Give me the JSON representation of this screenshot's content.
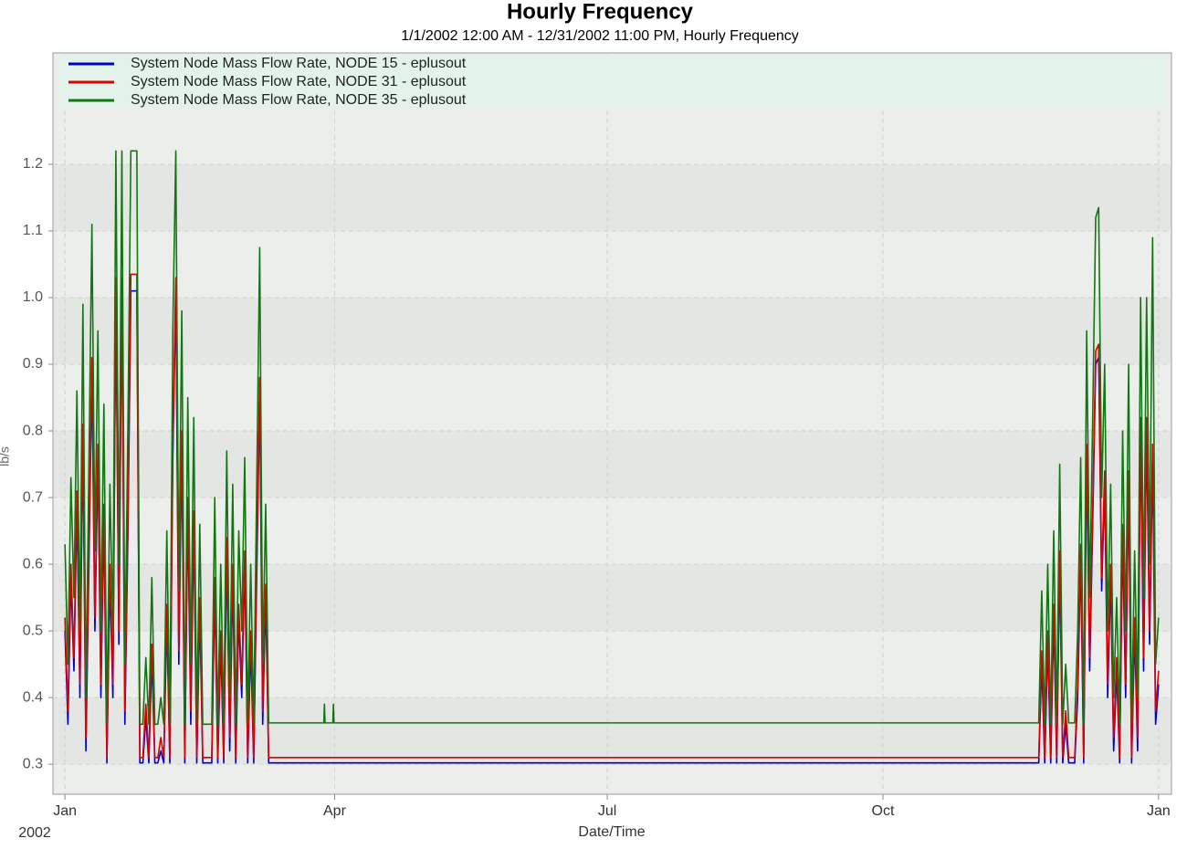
{
  "chart_data": {
    "type": "line",
    "title": "Hourly Frequency",
    "subtitle": "1/1/2002 12:00 AM - 12/31/2002 11:00 PM, Hourly Frequency",
    "x_label": "Date/Time",
    "x_sublabel": "2002",
    "y_label": "lb/s",
    "legend": "top",
    "grid": true,
    "xlim": [
      -4,
      369.3
    ],
    "xticks": [
      {
        "value": 0,
        "label": "Jan"
      },
      {
        "value": 90,
        "label": "Apr"
      },
      {
        "value": 181,
        "label": "Jul"
      },
      {
        "value": 273,
        "label": "Oct"
      },
      {
        "value": 365,
        "label": "Jan"
      }
    ],
    "ylim": [
      0.255,
      1.367
    ],
    "yticks": [
      0.3,
      0.4,
      0.5,
      0.6,
      0.7,
      0.8,
      0.9,
      {
        "value": 1,
        "label": "1.0"
      },
      1.1,
      1.2
    ],
    "x": [
      0,
      1,
      2,
      3,
      4,
      5,
      6,
      7,
      8,
      9,
      10,
      11,
      12,
      13,
      14,
      15,
      16,
      17,
      18,
      19,
      20,
      21,
      22,
      23,
      24,
      25,
      26,
      27,
      28,
      29,
      30,
      31,
      32,
      33,
      34,
      35,
      36,
      37,
      38,
      39,
      40,
      41,
      42,
      43,
      44,
      45,
      46,
      47,
      48,
      49,
      50,
      51,
      52,
      53,
      54,
      55,
      56,
      57,
      58,
      59,
      60,
      61,
      62,
      63,
      64,
      65,
      66,
      67,
      68,
      86.4,
      86.6,
      86.8,
      89.4,
      89.6,
      89.8,
      200,
      325,
      326,
      327,
      328,
      329,
      330,
      331,
      332,
      333,
      334,
      335,
      336,
      337,
      338,
      339,
      340,
      341,
      342,
      343,
      344,
      345,
      346,
      347,
      348,
      349,
      350,
      351,
      352,
      353,
      354,
      355,
      356,
      357,
      358,
      359,
      360,
      361,
      362,
      363,
      364,
      365
    ],
    "series": [
      {
        "name": "System Node Mass Flow Rate, NODE 15 - eplusout",
        "color": "#0000cc",
        "values": [
          0.5,
          0.36,
          0.58,
          0.44,
          0.69,
          0.4,
          0.79,
          0.32,
          0.6,
          0.89,
          0.5,
          0.76,
          0.4,
          0.67,
          0.302,
          0.58,
          0.4,
          1.01,
          0.48,
          1.01,
          0.36,
          0.64,
          1.01,
          1.01,
          1.01,
          0.302,
          0.302,
          0.37,
          0.302,
          0.46,
          0.302,
          0.302,
          0.32,
          0.302,
          0.52,
          0.302,
          0.76,
          1.01,
          0.45,
          0.78,
          0.302,
          0.68,
          0.36,
          0.66,
          0.302,
          0.53,
          0.302,
          0.302,
          0.302,
          0.302,
          0.56,
          0.302,
          0.48,
          0.302,
          0.62,
          0.32,
          0.58,
          0.302,
          0.52,
          0.4,
          0.6,
          0.302,
          0.48,
          0.302,
          0.58,
          0.86,
          0.36,
          0.55,
          0.302,
          0.302,
          0.302,
          0.302,
          0.302,
          0.302,
          0.302,
          0.302,
          0.302,
          0.45,
          0.302,
          0.48,
          0.302,
          0.52,
          0.302,
          0.6,
          0.302,
          0.36,
          0.302,
          0.302,
          0.302,
          0.4,
          0.61,
          0.302,
          0.76,
          0.44,
          0.66,
          0.9,
          0.91,
          0.56,
          0.72,
          0.4,
          0.58,
          0.32,
          0.44,
          0.302,
          0.64,
          0.4,
          0.72,
          0.302,
          0.5,
          0.32,
          0.8,
          0.44,
          0.8,
          0.48,
          0.76,
          0.36,
          0.42
        ]
      },
      {
        "name": "System Node Mass Flow Rate, NODE 31 - eplusout",
        "color": "#dd0000",
        "values": [
          0.52,
          0.38,
          0.6,
          0.46,
          0.71,
          0.42,
          0.81,
          0.34,
          0.62,
          0.91,
          0.52,
          0.78,
          0.42,
          0.69,
          0.31,
          0.6,
          0.42,
          1.03,
          0.5,
          1.03,
          0.38,
          0.66,
          1.035,
          1.035,
          1.035,
          0.31,
          0.31,
          0.39,
          0.31,
          0.48,
          0.31,
          0.31,
          0.34,
          0.31,
          0.54,
          0.31,
          0.78,
          1.03,
          0.47,
          0.8,
          0.31,
          0.7,
          0.38,
          0.68,
          0.31,
          0.55,
          0.31,
          0.31,
          0.31,
          0.31,
          0.58,
          0.31,
          0.5,
          0.31,
          0.64,
          0.34,
          0.6,
          0.31,
          0.54,
          0.42,
          0.62,
          0.31,
          0.5,
          0.31,
          0.6,
          0.88,
          0.38,
          0.57,
          0.31,
          0.31,
          0.31,
          0.31,
          0.31,
          0.31,
          0.31,
          0.31,
          0.31,
          0.47,
          0.31,
          0.5,
          0.31,
          0.54,
          0.31,
          0.62,
          0.31,
          0.38,
          0.31,
          0.31,
          0.31,
          0.42,
          0.63,
          0.31,
          0.78,
          0.46,
          0.68,
          0.92,
          0.93,
          0.58,
          0.74,
          0.42,
          0.6,
          0.34,
          0.46,
          0.31,
          0.66,
          0.42,
          0.74,
          0.31,
          0.52,
          0.34,
          0.82,
          0.46,
          0.82,
          0.5,
          0.78,
          0.38,
          0.44
        ]
      },
      {
        "name": "System Node Mass Flow Rate, NODE 35 - eplusout",
        "color": "#117711",
        "values": [
          0.63,
          0.45,
          0.73,
          0.55,
          0.86,
          0.5,
          0.99,
          0.4,
          0.75,
          1.11,
          0.62,
          0.95,
          0.5,
          0.84,
          0.36,
          0.72,
          0.5,
          1.22,
          0.6,
          1.22,
          0.45,
          0.8,
          1.22,
          1.22,
          1.22,
          0.36,
          0.36,
          0.46,
          0.36,
          0.58,
          0.36,
          0.36,
          0.4,
          0.36,
          0.65,
          0.36,
          0.95,
          1.22,
          0.56,
          0.98,
          0.36,
          0.85,
          0.45,
          0.82,
          0.36,
          0.66,
          0.36,
          0.36,
          0.36,
          0.36,
          0.7,
          0.36,
          0.6,
          0.36,
          0.77,
          0.4,
          0.72,
          0.36,
          0.65,
          0.5,
          0.76,
          0.36,
          0.6,
          0.36,
          0.72,
          1.075,
          0.45,
          0.69,
          0.362,
          0.362,
          0.39,
          0.362,
          0.362,
          0.39,
          0.362,
          0.362,
          0.362,
          0.56,
          0.36,
          0.6,
          0.36,
          0.65,
          0.36,
          0.75,
          0.36,
          0.45,
          0.362,
          0.362,
          0.362,
          0.5,
          0.76,
          0.36,
          0.95,
          0.55,
          0.82,
          1.12,
          1.135,
          0.7,
          0.9,
          0.5,
          0.72,
          0.4,
          0.55,
          0.36,
          0.8,
          0.5,
          0.9,
          0.36,
          0.62,
          0.4,
          1.0,
          0.55,
          1.0,
          0.6,
          1.09,
          0.45,
          0.52
        ]
      }
    ]
  }
}
